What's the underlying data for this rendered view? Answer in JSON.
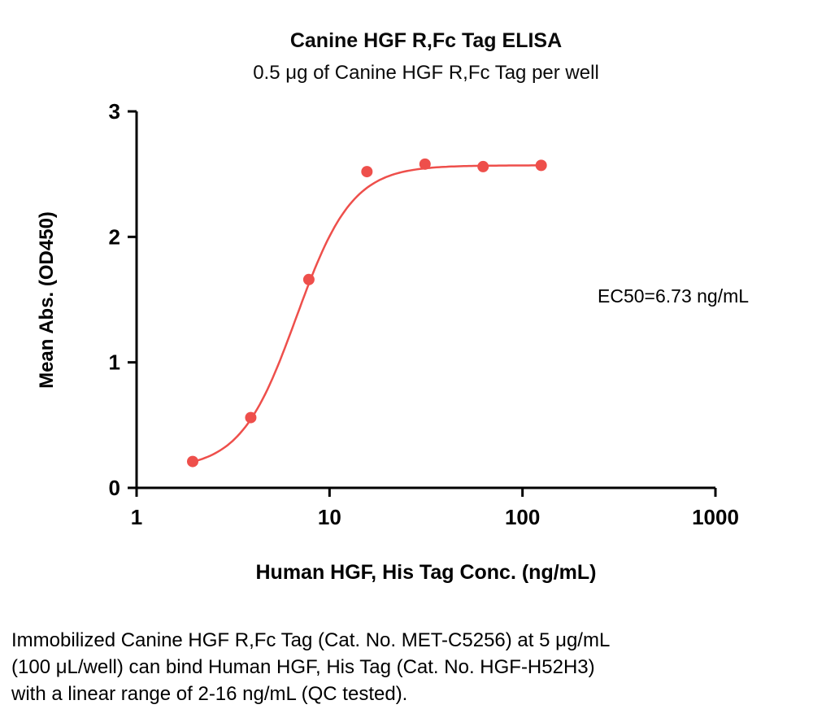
{
  "chart_data": {
    "type": "scatter",
    "title": "Canine HGF R,Fc Tag ELISA",
    "subtitle": "0.5 μg of Canine HGF R,Fc Tag per well",
    "xlabel": "Human HGF, His Tag Conc. (ng/mL)",
    "ylabel": "Mean Abs. (OD450)",
    "x_scale": "log10",
    "xlim": [
      1,
      1000
    ],
    "ylim": [
      0,
      3
    ],
    "x_ticks": [
      "1",
      "10",
      "100",
      "1000"
    ],
    "y_ticks": [
      "0",
      "1",
      "2",
      "3"
    ],
    "grid": false,
    "points": [
      {
        "x": 1.953,
        "y": 0.21
      },
      {
        "x": 3.906,
        "y": 0.56
      },
      {
        "x": 7.813,
        "y": 1.66
      },
      {
        "x": 15.625,
        "y": 2.52
      },
      {
        "x": 31.25,
        "y": 2.58
      },
      {
        "x": 62.5,
        "y": 2.56
      },
      {
        "x": 125,
        "y": 2.57
      }
    ],
    "fit": {
      "model": "4PL",
      "bottom": 0.15,
      "top": 2.57,
      "ec50": 6.73,
      "hill": 3.0
    },
    "annotation": "EC50=6.73 ng/mL",
    "series_color": "#EE4F4B",
    "axis_color": "#000000"
  },
  "caption": {
    "lines": [
      "Immobilized Canine HGF R,Fc Tag (Cat. No. MET-C5256) at 5 μg/mL",
      "(100 μL/well) can bind Human HGF, His Tag (Cat. No. HGF-H52H3)",
      "with a linear range of 2-16 ng/mL (QC tested)."
    ]
  }
}
